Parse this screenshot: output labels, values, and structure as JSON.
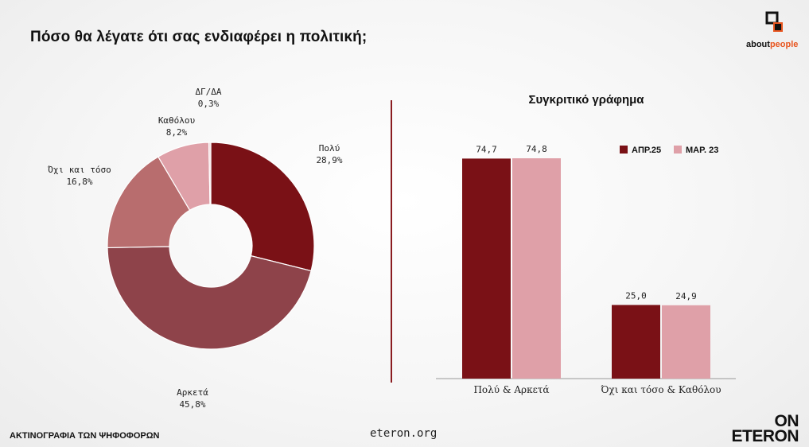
{
  "header": {
    "title": "Πόσο θα λέγατε ότι σας ενδιαφέρει η πολιτική;"
  },
  "logo": {
    "brand_main": "about",
    "brand_accent": "people"
  },
  "footer": {
    "left": "ΑΚΤΙΝΟΓΡΑΦΙΑ ΤΩΝ ΨΗΦΟΦΟΡΩΝ",
    "center": "eteron.org",
    "brand_line1": "ON",
    "brand_line2": "ETERON"
  },
  "chart_data": [
    {
      "type": "pie",
      "subtype": "donut",
      "slices": [
        {
          "label": "Πολύ",
          "value": 28.9,
          "display": "28,9%",
          "color": "#7a1116"
        },
        {
          "label": "Αρκετά",
          "value": 45.8,
          "display": "45,8%",
          "color": "#8e434a"
        },
        {
          "label": "Όχι και τόσο",
          "value": 16.8,
          "display": "16,8%",
          "color": "#b86d6e"
        },
        {
          "label": "Καθόλου",
          "value": 8.2,
          "display": "8,2%",
          "color": "#dfa0a8"
        },
        {
          "label": "ΔΓ/ΔΑ",
          "value": 0.3,
          "display": "0,3%",
          "color": "#f2d6d9"
        }
      ]
    },
    {
      "type": "bar",
      "title": "Συγκριτικό γράφημα",
      "categories": [
        "Πολύ & Αρκετά",
        "Όχι και τόσο & Καθόλου"
      ],
      "series": [
        {
          "name": "ΑΠΡ.25",
          "values": [
            74.7,
            25.0
          ],
          "display": [
            "74,7",
            "25,0"
          ],
          "color": "#7a1116"
        },
        {
          "name": "ΜΑΡ. 23",
          "values": [
            74.8,
            24.9
          ],
          "display": [
            "74,8",
            "24,9"
          ],
          "color": "#dfa0a8"
        }
      ],
      "legend_position": "top-right",
      "grid": false
    }
  ]
}
